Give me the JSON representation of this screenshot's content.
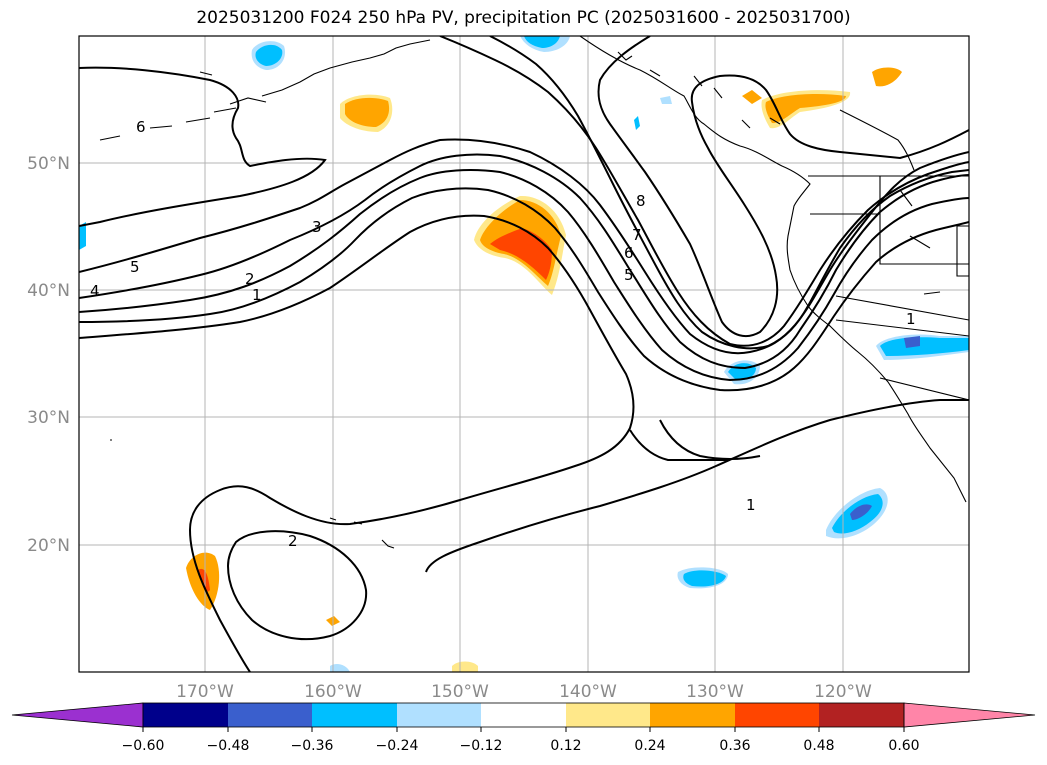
{
  "title": "2025031200 F024 250 hPa PV, precipitation PC (2025031600 - 2025031700)",
  "map": {
    "lat_labels": [
      "50°N",
      "40°N",
      "30°N",
      "20°N"
    ],
    "lon_labels": [
      "170°W",
      "160°W",
      "150°W",
      "140°W",
      "130°W",
      "120°W"
    ],
    "contour_labels": [
      "6",
      "5",
      "4",
      "3",
      "2",
      "1",
      "8",
      "7",
      "6",
      "5",
      "1",
      "2",
      "1"
    ]
  },
  "colorbar": {
    "ticks": [
      "−0.60",
      "−0.48",
      "−0.36",
      "−0.24",
      "−0.12",
      "0.12",
      "0.24",
      "0.36",
      "0.48",
      "0.60"
    ],
    "colors": [
      "#9b30d0",
      "#00008b",
      "#3a5fcd",
      "#00bfff",
      "#b0e0ff",
      "#ffffff",
      "#ffe88a",
      "#ffa500",
      "#ff4500",
      "#b22222",
      "#ff85a8"
    ]
  }
}
